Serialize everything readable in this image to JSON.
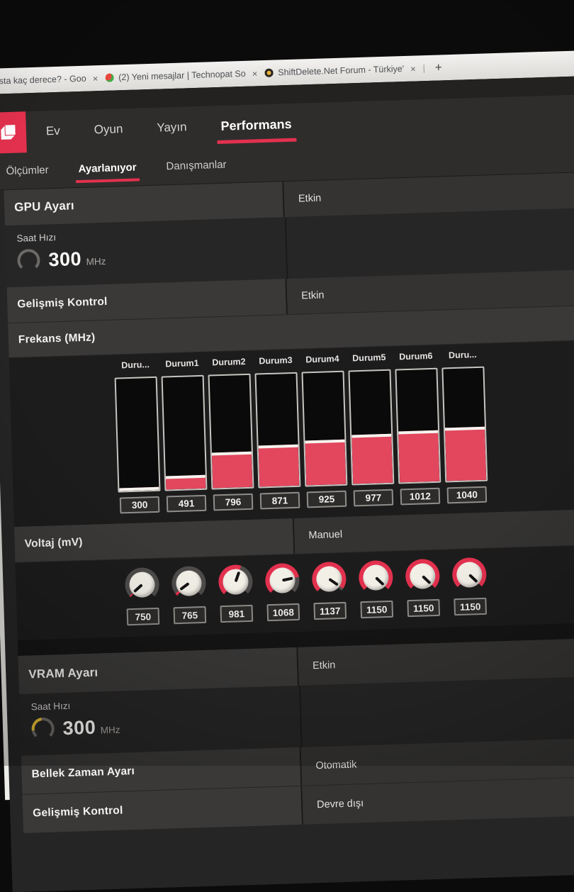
{
  "browser": {
    "tabs": [
      {
        "title": "sta kaç derece? - Goo",
        "close": "×"
      },
      {
        "title": "(2) Yeni mesajlar | Technopat So",
        "close": "×"
      },
      {
        "title": "ShiftDelete.Net Forum - Türkiye'",
        "close": "×"
      }
    ],
    "separator": "|",
    "new_tab_label": "+"
  },
  "app": {
    "accent_color": "#e2314e",
    "nav_tabs": [
      {
        "label": "Ev"
      },
      {
        "label": "Oyun"
      },
      {
        "label": "Yayın"
      },
      {
        "label": "Performans"
      }
    ],
    "sub_tabs": [
      {
        "label": "Ölçümler"
      },
      {
        "label": "Ayarlanıyor"
      },
      {
        "label": "Danışmanlar"
      }
    ],
    "gpu_section": {
      "title": "GPU Ayarı",
      "status": "Etkin",
      "clock": {
        "label": "Saat Hızı",
        "value": "300",
        "unit": "MHz"
      },
      "advanced": {
        "label": "Gelişmiş Kontrol",
        "status": "Etkin"
      },
      "frequency_header": "Frekans (MHz)"
    },
    "voltage": {
      "label": "Voltaj (mV)",
      "mode": "Manuel",
      "values": [
        750,
        765,
        981,
        1068,
        1137,
        1150,
        1150,
        1150
      ],
      "value_labels": [
        "750",
        "765",
        "981",
        "1068",
        "1137",
        "1150",
        "1150",
        "1150"
      ],
      "min": 750,
      "max": 1150
    },
    "vram_section": {
      "title": "VRAM Ayarı",
      "status": "Etkin",
      "clock": {
        "label": "Saat Hızı",
        "value": "300",
        "unit": "MHz"
      },
      "memory_timing": {
        "label": "Bellek Zaman Ayarı",
        "value": "Otomatik"
      },
      "advanced": {
        "label": "Gelişmiş Kontrol",
        "status": "Devre dışı"
      }
    }
  },
  "chart_data": {
    "type": "bar",
    "title": "Frekans (MHz)",
    "categories": [
      "Duru...",
      "Durum1",
      "Durum2",
      "Durum3",
      "Durum4",
      "Durum5",
      "Durum6",
      "Duru..."
    ],
    "values": [
      300,
      491,
      796,
      871,
      925,
      977,
      1012,
      1040
    ],
    "value_labels": [
      "300",
      "491",
      "796",
      "871",
      "925",
      "977",
      "1012",
      "1040"
    ],
    "ylabel": "MHz",
    "axis_min": 300,
    "axis_max": 1860,
    "bar_color": "#e2475e",
    "orientation": "vertical-sliders",
    "grid": false,
    "legend": false
  }
}
